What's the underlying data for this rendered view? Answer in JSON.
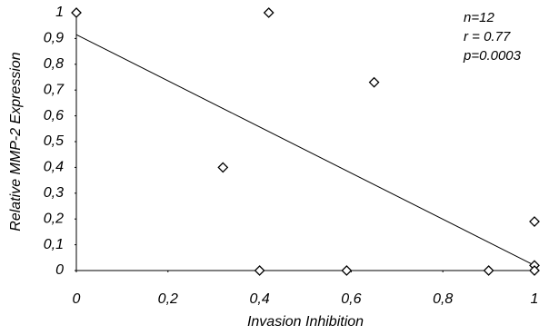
{
  "chart_data": {
    "type": "scatter",
    "x_label": "Invasion Inhibition",
    "y_label": "Relative MMP-2 Expression",
    "series": [
      {
        "color": "#000000",
        "x": [
          0,
          0.42,
          0.32,
          0.65,
          0.4,
          0.59,
          0.9,
          1,
          1,
          1
        ],
        "values": [
          1,
          1,
          0.4,
          0.73,
          0,
          0,
          0,
          0.19,
          0.02,
          0
        ]
      }
    ],
    "trendline": {
      "x": [
        0,
        1
      ],
      "y": [
        0.915,
        0.02
      ]
    },
    "annotations": [
      "n=12",
      "r = 0.77",
      "p=0.0003"
    ],
    "xlim": [
      0,
      1
    ],
    "ylim": [
      0,
      1
    ],
    "xticks": [
      0,
      {
        "value": 0.2,
        "label": "0,2"
      },
      {
        "value": 0.4,
        "label": "0,4"
      },
      {
        "value": 0.6,
        "label": "0,6"
      },
      {
        "value": 0.8,
        "label": "0,8"
      },
      1
    ],
    "yticks": [
      0,
      {
        "value": 0.1,
        "label": "0,1"
      },
      {
        "value": 0.2,
        "label": "0,2"
      },
      {
        "value": 0.3,
        "label": "0,3"
      },
      {
        "value": 0.4,
        "label": "0,4"
      },
      {
        "value": 0.5,
        "label": "0,5"
      },
      {
        "value": 0.6,
        "label": "0,6"
      },
      {
        "value": 0.7,
        "label": "0,7"
      },
      {
        "value": 0.8,
        "label": "0,8"
      },
      {
        "value": 0.9,
        "label": "0,9"
      },
      1
    ]
  }
}
